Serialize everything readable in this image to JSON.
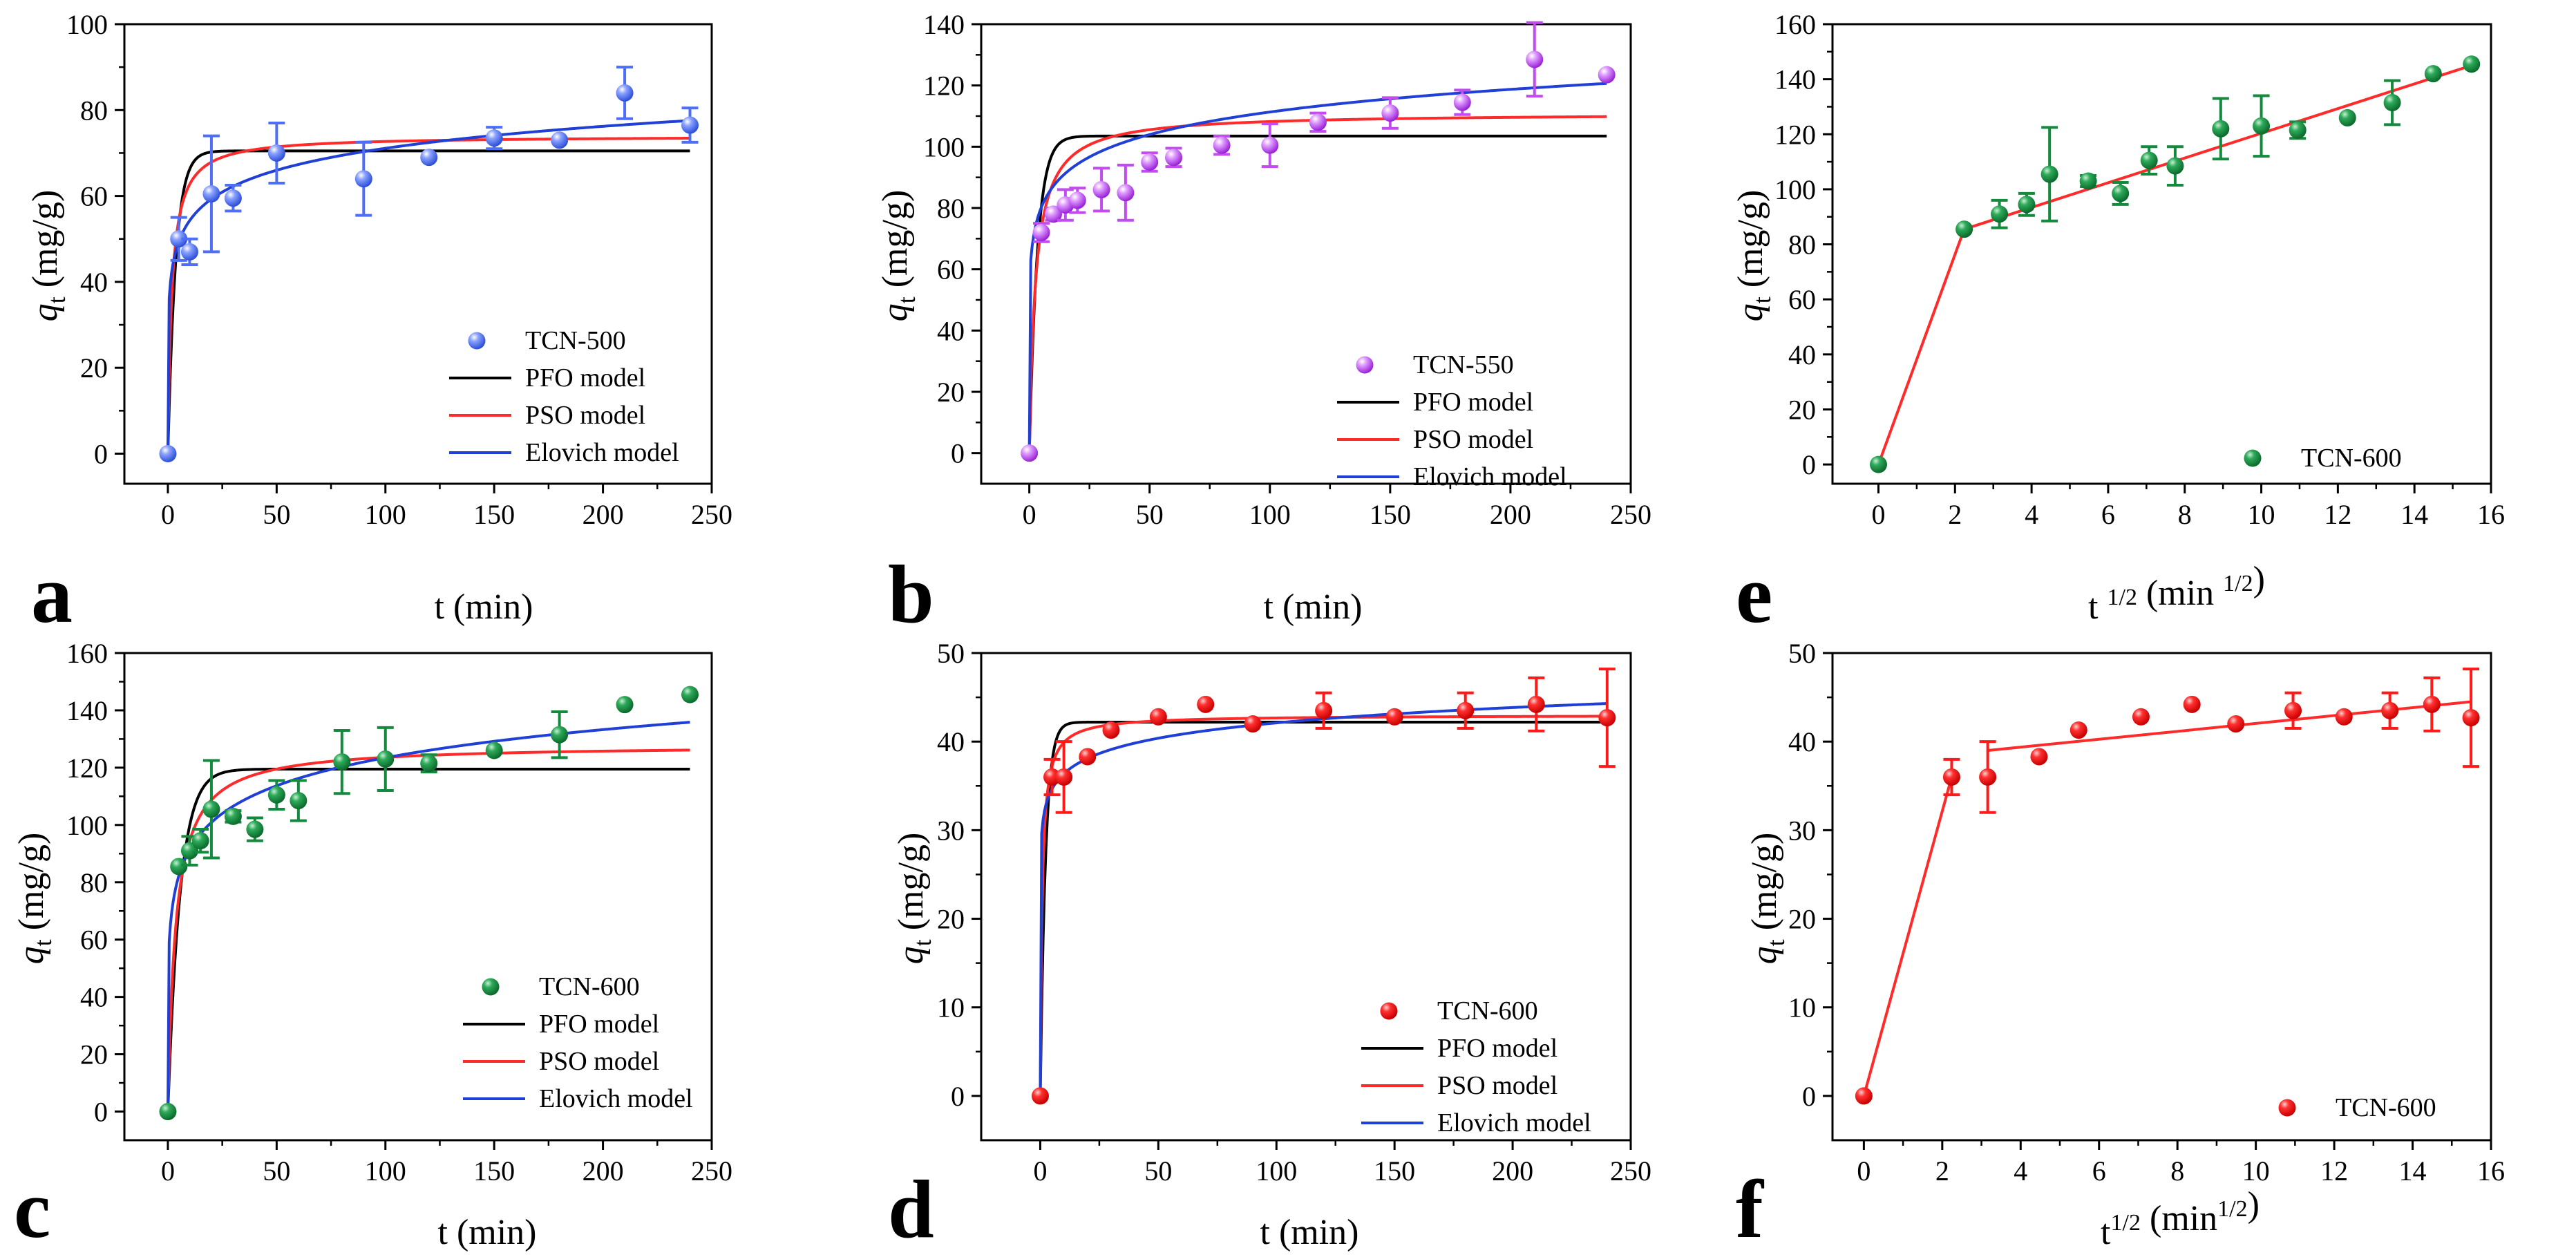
{
  "figure": {
    "panels": [
      {
        "letter": "a",
        "ylabel_main": "q",
        "ylabel_sub": "t",
        "ylabel_unit": " (mg/g)",
        "xlabel": "t (min)"
      },
      {
        "letter": "b",
        "ylabel_main": "q",
        "ylabel_sub": "t",
        "ylabel_unit": " (mg/g)",
        "xlabel": "t (min)"
      },
      {
        "letter": "e",
        "ylabel_main": "q",
        "ylabel_sub": "t",
        "ylabel_unit": " (mg/g)",
        "xlabel": "t 1/2 (min 1/2)"
      },
      {
        "letter": "c",
        "ylabel_main": "q",
        "ylabel_sub": "t",
        "ylabel_unit": " (mg/g)",
        "xlabel": "t (min)"
      },
      {
        "letter": "d",
        "ylabel_main": "q",
        "ylabel_sub": "t",
        "ylabel_unit": " (mg/g)",
        "xlabel": "t (min)"
      },
      {
        "letter": "f",
        "ylabel_main": "q",
        "ylabel_sub": "t",
        "ylabel_unit": " (mg/g)",
        "xlabel": "t1/2 (min1/2)"
      }
    ]
  },
  "chart_data": [
    {
      "type": "scatter",
      "panel": "a",
      "xlabel": "t (min)",
      "ylabel": "qt (mg/g)",
      "xlim": [
        -20,
        250
      ],
      "ylim": [
        -7,
        100
      ],
      "xticks": [
        0,
        50,
        100,
        150,
        200,
        250
      ],
      "yticks": [
        0,
        20,
        40,
        60,
        80,
        100
      ],
      "legend": [
        "TCN-500",
        "PFO model",
        "PSO model",
        "Elovich model"
      ],
      "point_color": "#4f6ef7",
      "points": {
        "name": "TCN-500",
        "x": [
          0,
          5,
          10,
          20,
          30,
          50,
          90,
          120,
          150,
          180,
          210,
          240
        ],
        "y": [
          0,
          50,
          47,
          60.5,
          59.5,
          70,
          64,
          69,
          73.5,
          73,
          84,
          76.5
        ],
        "err": [
          0,
          5,
          3,
          13.5,
          3,
          7,
          8.5,
          0,
          2.5,
          0,
          6,
          4
        ]
      },
      "models": [
        {
          "name": "PFO model",
          "type": "pfo",
          "qe": 70.5,
          "k": 0.28,
          "color": "#000000"
        },
        {
          "name": "PSO model",
          "type": "pso",
          "qe": 74.0,
          "k": 0.0075,
          "color": "#ff2a2a"
        },
        {
          "name": "Elovich model",
          "type": "elovich",
          "a": 37.0,
          "b": 7.4,
          "t0": 0.3,
          "color": "#1f3fd6"
        }
      ]
    },
    {
      "type": "scatter",
      "panel": "b",
      "xlabel": "t (min)",
      "ylabel": "qt (mg/g)",
      "xlim": [
        -20,
        250
      ],
      "ylim": [
        -10,
        140
      ],
      "xticks": [
        0,
        50,
        100,
        150,
        200,
        250
      ],
      "yticks": [
        0,
        20,
        40,
        60,
        80,
        100,
        120,
        140
      ],
      "legend": [
        "TCN-550",
        "PFO model",
        "PSO model",
        "Elovich model"
      ],
      "point_color": "#c24cf0",
      "points": {
        "name": "TCN-550",
        "x": [
          0,
          5,
          10,
          15,
          20,
          30,
          40,
          50,
          60,
          80,
          100,
          120,
          150,
          180,
          210,
          240
        ],
        "y": [
          0,
          72,
          78,
          81,
          82.5,
          86,
          85,
          95,
          96.5,
          100.5,
          100.5,
          108,
          111,
          114.5,
          128.5,
          123.5
        ],
        "err": [
          0,
          3,
          2,
          5,
          4,
          7,
          9,
          3,
          3,
          3,
          7,
          3,
          5,
          4,
          12,
          0
        ]
      },
      "models": [
        {
          "name": "PFO model",
          "type": "pfo",
          "qe": 103.5,
          "k": 0.3,
          "color": "#000000"
        },
        {
          "name": "PSO model",
          "type": "pso",
          "qe": 111.0,
          "k": 0.0035,
          "color": "#ff2a2a"
        },
        {
          "name": "Elovich model",
          "type": "elovich",
          "a": 62.0,
          "b": 10.7,
          "t0": 0.5,
          "color": "#1f3fd6"
        }
      ]
    },
    {
      "type": "scatter",
      "panel": "e",
      "xlabel": "t 1/2 (min 1/2)",
      "ylabel": "qt (mg/g)",
      "xlim": [
        -1.2,
        16
      ],
      "ylim": [
        -7,
        160
      ],
      "xticks": [
        0,
        2,
        4,
        6,
        8,
        10,
        12,
        14,
        16
      ],
      "yticks": [
        0,
        20,
        40,
        60,
        80,
        100,
        120,
        140,
        160
      ],
      "legend": [
        "TCN-600"
      ],
      "point_color": "#138a3e",
      "points": {
        "name": "TCN-600",
        "x": [
          0,
          2.24,
          3.16,
          3.87,
          4.47,
          5.48,
          6.32,
          7.07,
          7.75,
          8.94,
          10.0,
          10.95,
          12.25,
          13.42,
          14.49,
          15.49
        ],
        "y": [
          0,
          85.5,
          91,
          94.5,
          105.5,
          103,
          98.5,
          110.5,
          108.5,
          122,
          123,
          121.5,
          126,
          131.5,
          142,
          145.5
        ],
        "err": [
          0,
          0,
          5,
          4,
          17,
          2,
          4,
          5,
          7,
          11,
          11,
          3,
          0,
          8,
          0,
          0
        ]
      },
      "lines": [
        {
          "x": [
            0,
            2.24
          ],
          "y": [
            0,
            85.5
          ],
          "color": "#ff2a2a"
        },
        {
          "x": [
            2.24,
            15.49
          ],
          "y": [
            85.5,
            145
          ],
          "color": "#ff2a2a"
        }
      ]
    },
    {
      "type": "scatter",
      "panel": "c",
      "xlabel": "t (min)",
      "ylabel": "qt (mg/g)",
      "xlim": [
        -20,
        250
      ],
      "ylim": [
        -10,
        160
      ],
      "xticks": [
        0,
        50,
        100,
        150,
        200,
        250
      ],
      "yticks": [
        0,
        20,
        40,
        60,
        80,
        100,
        120,
        140,
        160
      ],
      "legend": [
        "TCN-600",
        "PFO model",
        "PSO model",
        "Elovich model"
      ],
      "point_color": "#138a3e",
      "points": {
        "name": "TCN-600",
        "x": [
          0,
          5,
          10,
          15,
          20,
          30,
          40,
          50,
          60,
          80,
          100,
          120,
          150,
          180,
          210,
          240
        ],
        "y": [
          0,
          85.5,
          91,
          94.5,
          105.5,
          103,
          98.5,
          110.5,
          108.5,
          122,
          123,
          121.5,
          126,
          131.5,
          142,
          145.5
        ],
        "err": [
          0,
          0,
          5,
          4,
          17,
          2,
          4,
          5,
          7,
          11,
          11,
          3,
          0,
          8,
          0,
          0
        ]
      },
      "models": [
        {
          "name": "PFO model",
          "type": "pfo",
          "qe": 119.5,
          "k": 0.18,
          "color": "#000000"
        },
        {
          "name": "PSO model",
          "type": "pso",
          "qe": 128.0,
          "k": 0.0022,
          "color": "#ff2a2a"
        },
        {
          "name": "Elovich model",
          "type": "elovich",
          "a": 58.0,
          "b": 14.2,
          "t0": 0.5,
          "color": "#1f3fd6"
        }
      ]
    },
    {
      "type": "scatter",
      "panel": "d",
      "xlabel": "t (min)",
      "ylabel": "qt (mg/g)",
      "xlim": [
        -25,
        250
      ],
      "ylim": [
        -5,
        50
      ],
      "xticks": [
        0,
        50,
        100,
        150,
        200,
        250
      ],
      "yticks": [
        0,
        10,
        20,
        30,
        40,
        50
      ],
      "legend": [
        "TCN-600",
        "PFO model",
        "PSO model",
        "Elovich model"
      ],
      "point_color": "#ff1a1a",
      "points": {
        "name": "TCN-600",
        "x": [
          0,
          5,
          10,
          20,
          30,
          50,
          70,
          90,
          120,
          150,
          180,
          210,
          240
        ],
        "y": [
          0,
          36,
          36,
          38.3,
          41.3,
          42.8,
          44.2,
          42,
          43.5,
          42.8,
          43.5,
          44.2,
          42.7
        ],
        "err": [
          0,
          2,
          4,
          0,
          0,
          0,
          0,
          0,
          2,
          0,
          2,
          3,
          5.5
        ]
      },
      "models": [
        {
          "name": "PFO model",
          "type": "pfo",
          "qe": 42.2,
          "k": 0.45,
          "color": "#000000"
        },
        {
          "name": "PSO model",
          "type": "pso",
          "qe": 43.0,
          "k": 0.03,
          "color": "#ff2a2a"
        },
        {
          "name": "Elovich model",
          "type": "elovich",
          "a": 30.6,
          "b": 2.5,
          "t0": 0.08,
          "color": "#1f3fd6"
        }
      ]
    },
    {
      "type": "scatter",
      "panel": "f",
      "xlabel": "t1/2 (min1/2)",
      "ylabel": "qt (mg/g)",
      "xlim": [
        -0.8,
        16
      ],
      "ylim": [
        -5,
        50
      ],
      "xticks": [
        0,
        2,
        4,
        6,
        8,
        10,
        12,
        14,
        16
      ],
      "yticks": [
        0,
        10,
        20,
        30,
        40,
        50
      ],
      "legend": [
        "TCN-600"
      ],
      "point_color": "#ff1a1a",
      "points": {
        "name": "TCN-600",
        "x": [
          0,
          2.24,
          3.16,
          4.47,
          5.48,
          7.07,
          8.37,
          9.49,
          10.95,
          12.25,
          13.42,
          14.49,
          15.49
        ],
        "y": [
          0,
          36,
          36,
          38.3,
          41.3,
          42.8,
          44.2,
          42,
          43.5,
          42.8,
          43.5,
          44.2,
          42.7
        ],
        "err": [
          0,
          2,
          4,
          0,
          0,
          0,
          0,
          0,
          2,
          0,
          2,
          3,
          5.5
        ]
      },
      "lines": [
        {
          "x": [
            0,
            2.24
          ],
          "y": [
            0,
            36
          ],
          "color": "#ff2a2a"
        },
        {
          "x": [
            3.16,
            15.49
          ],
          "y": [
            39,
            44.5
          ],
          "color": "#ff2a2a"
        }
      ]
    }
  ]
}
